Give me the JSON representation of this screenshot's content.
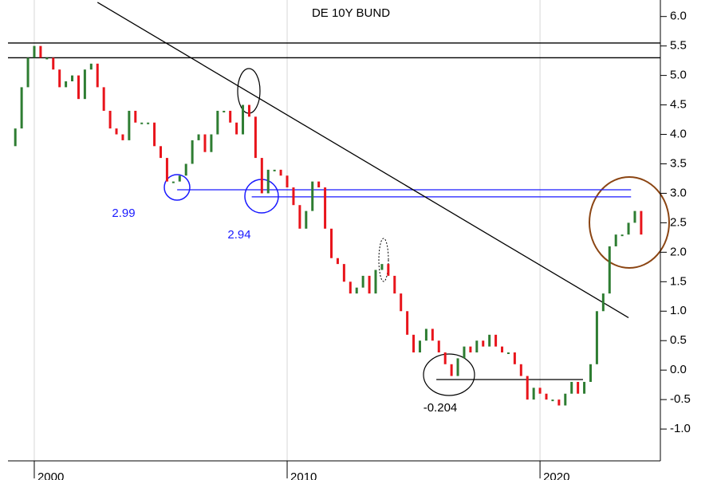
{
  "chart_data": {
    "type": "bar",
    "title": "DE 10Y BUND",
    "xlim": [
      1998.96,
      2024.76
    ],
    "xticks": [
      2000,
      2010,
      2020
    ],
    "ylim": [
      -1.54,
      6.28
    ],
    "yticks": [
      {
        "value": -1,
        "label": "-1.0"
      },
      -0.5,
      {
        "value": 0,
        "label": "0.0"
      },
      0.5,
      {
        "value": 1,
        "label": "1.0"
      },
      1.5,
      {
        "value": 2,
        "label": "2.0"
      },
      2.5,
      {
        "value": 3,
        "label": "3.0"
      },
      3.5,
      {
        "value": 4,
        "label": "4.0"
      },
      4.5,
      {
        "value": 5,
        "label": "5.0"
      },
      5.5,
      {
        "value": 6,
        "label": "6.0"
      }
    ],
    "up_color": "#2e7d32",
    "down_color": "#e8141b",
    "x": [
      1999.0,
      1999.25,
      1999.5,
      1999.75,
      2000.0,
      2000.25,
      2000.5,
      2000.75,
      2001.0,
      2001.25,
      2001.5,
      2001.75,
      2002.0,
      2002.25,
      2002.5,
      2002.75,
      2003.0,
      2003.25,
      2003.5,
      2003.75,
      2004.0,
      2004.25,
      2004.5,
      2004.75,
      2005.0,
      2005.25,
      2005.5,
      2005.75,
      2006.0,
      2006.25,
      2006.5,
      2006.75,
      2007.0,
      2007.25,
      2007.5,
      2007.75,
      2008.0,
      2008.25,
      2008.5,
      2008.75,
      2009.0,
      2009.25,
      2009.5,
      2009.75,
      2010.0,
      2010.25,
      2010.5,
      2010.75,
      2011.0,
      2011.25,
      2011.5,
      2011.75,
      2012.0,
      2012.25,
      2012.5,
      2012.75,
      2013.0,
      2013.25,
      2013.5,
      2013.75,
      2014.0,
      2014.25,
      2014.5,
      2014.75,
      2015.0,
      2015.25,
      2015.5,
      2015.75,
      2016.0,
      2016.25,
      2016.5,
      2016.75,
      2017.0,
      2017.25,
      2017.5,
      2017.75,
      2018.0,
      2018.25,
      2018.5,
      2018.75,
      2019.0,
      2019.25,
      2019.5,
      2019.75,
      2020.0,
      2020.25,
      2020.5,
      2020.75,
      2021.0,
      2021.25,
      2021.5,
      2021.75,
      2022.0,
      2022.25,
      2022.5,
      2022.75,
      2023.0,
      2023.25,
      2023.5,
      2023.75,
      2024.0
    ],
    "values": [
      3.8,
      4.1,
      4.8,
      5.3,
      5.5,
      5.3,
      5.3,
      5.1,
      4.8,
      4.9,
      5.0,
      4.6,
      5.1,
      5.2,
      4.8,
      4.4,
      4.1,
      4.0,
      3.9,
      4.4,
      4.2,
      4.2,
      4.2,
      3.8,
      3.6,
      3.2,
      3.2,
      3.3,
      3.5,
      3.9,
      4.0,
      3.7,
      4.0,
      4.4,
      4.4,
      4.2,
      4.0,
      4.5,
      4.3,
      3.6,
      3.0,
      3.4,
      3.4,
      3.3,
      3.1,
      2.8,
      2.4,
      2.7,
      3.2,
      3.1,
      2.4,
      1.9,
      1.8,
      1.5,
      1.3,
      1.4,
      1.6,
      1.3,
      1.7,
      1.8,
      1.6,
      1.3,
      1.0,
      0.6,
      0.3,
      0.5,
      0.7,
      0.5,
      0.3,
      0.1,
      -0.1,
      0.2,
      0.4,
      0.3,
      0.5,
      0.4,
      0.6,
      0.4,
      0.3,
      0.3,
      0.1,
      -0.1,
      -0.5,
      -0.3,
      -0.4,
      -0.5,
      -0.5,
      -0.6,
      -0.4,
      -0.2,
      -0.4,
      -0.2,
      0.1,
      1.0,
      1.3,
      2.1,
      2.3,
      2.3,
      2.5,
      2.7,
      2.3
    ],
    "lines": [
      {
        "x": [
          1998.96,
          2024.76
        ],
        "y": [
          5.55,
          5.55
        ],
        "color": "#000000"
      },
      {
        "x": [
          1998.96,
          2024.76
        ],
        "y": [
          5.3,
          5.3
        ],
        "color": "#000000"
      },
      {
        "x": [
          2005.65,
          2023.6
        ],
        "y": [
          3.06,
          3.06
        ],
        "color": "#1a1aff"
      },
      {
        "x": [
          2008.6,
          2023.6
        ],
        "y": [
          2.94,
          2.94
        ],
        "color": "#1a1aff"
      },
      {
        "x": [
          2015.9,
          2021.7
        ],
        "y": [
          -0.16,
          -0.16
        ],
        "color": "#000000"
      },
      {
        "x": [
          2002.5,
          2023.5
        ],
        "y": [
          6.24,
          0.89
        ],
        "color": "#000000"
      }
    ],
    "annotations": [
      "2.99",
      "2.94",
      "-0.204"
    ]
  }
}
